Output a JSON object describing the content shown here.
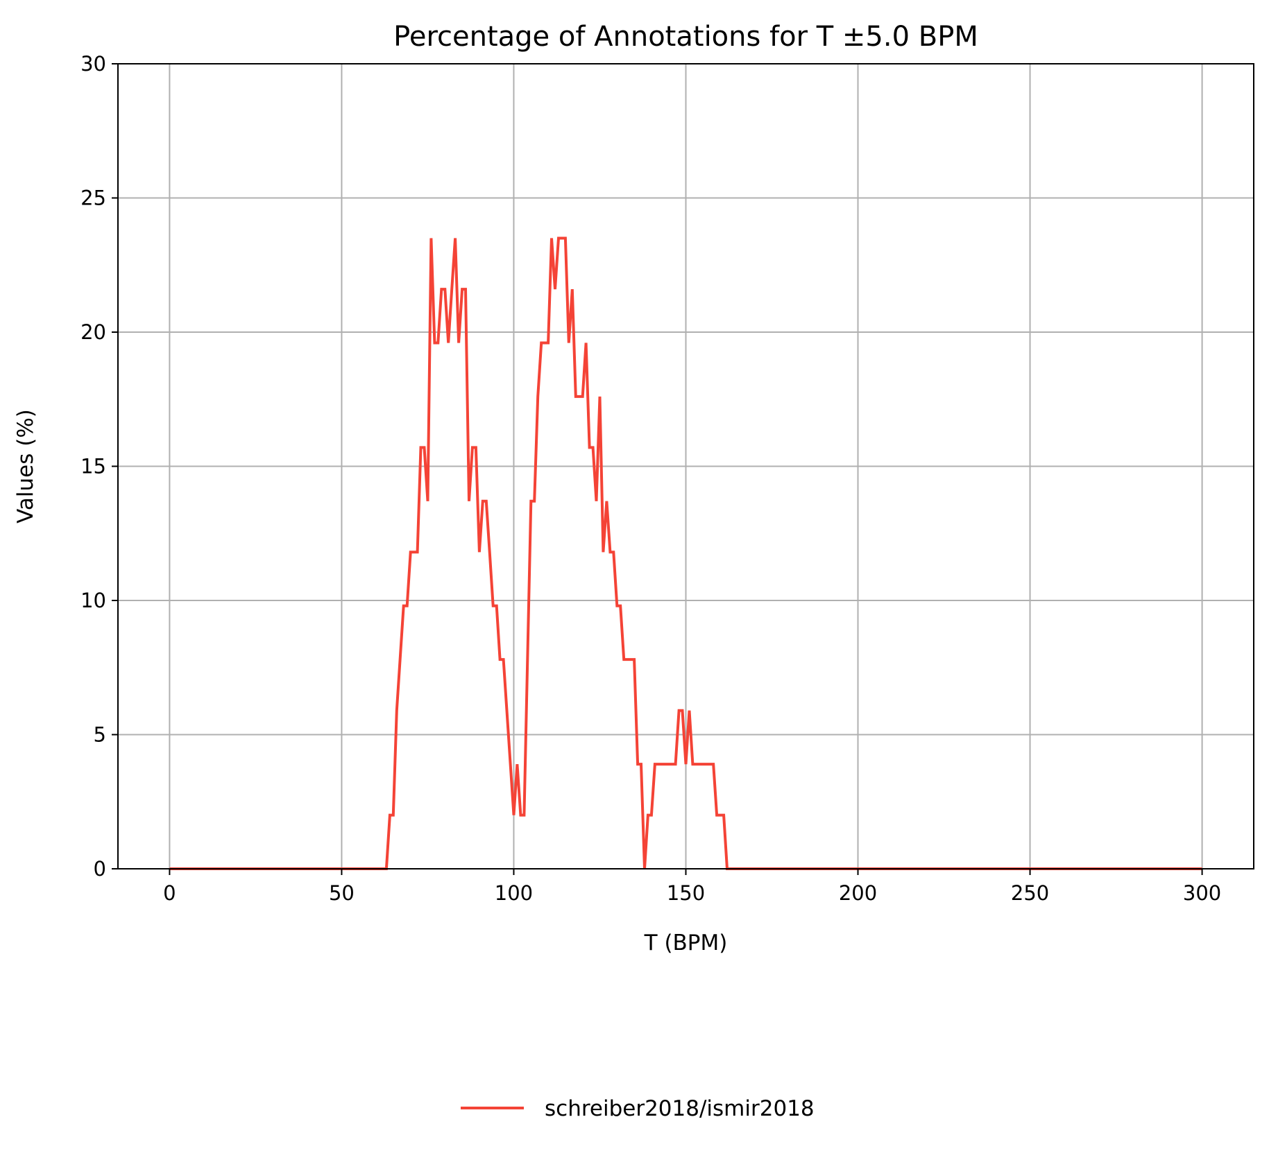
{
  "chart_data": {
    "type": "line",
    "title": "Percentage of Annotations for T ±5.0 BPM",
    "xlabel": "T (BPM)",
    "ylabel": "Values (%)",
    "xlim": [
      -15,
      315
    ],
    "ylim": [
      0,
      30
    ],
    "xticks": [
      0,
      50,
      100,
      150,
      200,
      250,
      300
    ],
    "yticks": [
      0,
      5,
      10,
      15,
      20,
      25,
      30
    ],
    "grid": true,
    "legend": "bottom-center",
    "series": [
      {
        "name": "schreiber2018/ismir2018",
        "color": "#f44336",
        "points": [
          [
            0,
            0
          ],
          [
            63,
            0
          ],
          [
            64,
            2.0
          ],
          [
            65,
            2.0
          ],
          [
            66,
            5.9
          ],
          [
            68,
            9.8
          ],
          [
            69,
            9.8
          ],
          [
            70,
            11.8
          ],
          [
            72,
            11.8
          ],
          [
            73,
            15.7
          ],
          [
            74,
            15.7
          ],
          [
            75,
            13.7
          ],
          [
            76,
            23.5
          ],
          [
            77,
            19.6
          ],
          [
            78,
            19.6
          ],
          [
            79,
            21.6
          ],
          [
            80,
            21.6
          ],
          [
            81,
            19.6
          ],
          [
            82,
            21.6
          ],
          [
            83,
            23.5
          ],
          [
            84,
            19.6
          ],
          [
            85,
            21.6
          ],
          [
            86,
            21.6
          ],
          [
            87,
            13.7
          ],
          [
            88,
            15.7
          ],
          [
            89,
            15.7
          ],
          [
            90,
            11.8
          ],
          [
            91,
            13.7
          ],
          [
            92,
            13.7
          ],
          [
            93,
            11.8
          ],
          [
            94,
            9.8
          ],
          [
            95,
            9.8
          ],
          [
            96,
            7.8
          ],
          [
            97,
            7.8
          ],
          [
            100,
            2.0
          ],
          [
            101,
            3.9
          ],
          [
            102,
            2.0
          ],
          [
            103,
            2.0
          ],
          [
            104,
            7.8
          ],
          [
            105,
            13.7
          ],
          [
            106,
            13.7
          ],
          [
            107,
            17.6
          ],
          [
            108,
            19.6
          ],
          [
            110,
            19.6
          ],
          [
            111,
            23.5
          ],
          [
            112,
            21.6
          ],
          [
            113,
            23.5
          ],
          [
            115,
            23.5
          ],
          [
            116,
            19.6
          ],
          [
            117,
            21.6
          ],
          [
            118,
            17.6
          ],
          [
            120,
            17.6
          ],
          [
            121,
            19.6
          ],
          [
            122,
            15.7
          ],
          [
            123,
            15.7
          ],
          [
            124,
            13.7
          ],
          [
            125,
            17.6
          ],
          [
            126,
            11.8
          ],
          [
            127,
            13.7
          ],
          [
            128,
            11.8
          ],
          [
            129,
            11.8
          ],
          [
            130,
            9.8
          ],
          [
            131,
            9.8
          ],
          [
            132,
            7.8
          ],
          [
            135,
            7.8
          ],
          [
            136,
            3.9
          ],
          [
            137,
            3.9
          ],
          [
            138,
            0
          ],
          [
            139,
            2.0
          ],
          [
            140,
            2.0
          ],
          [
            141,
            3.9
          ],
          [
            147,
            3.9
          ],
          [
            148,
            5.9
          ],
          [
            149,
            5.9
          ],
          [
            150,
            3.9
          ],
          [
            151,
            5.9
          ],
          [
            152,
            3.9
          ],
          [
            158,
            3.9
          ],
          [
            159,
            2.0
          ],
          [
            161,
            2.0
          ],
          [
            162,
            0
          ],
          [
            300,
            0
          ]
        ]
      }
    ]
  }
}
